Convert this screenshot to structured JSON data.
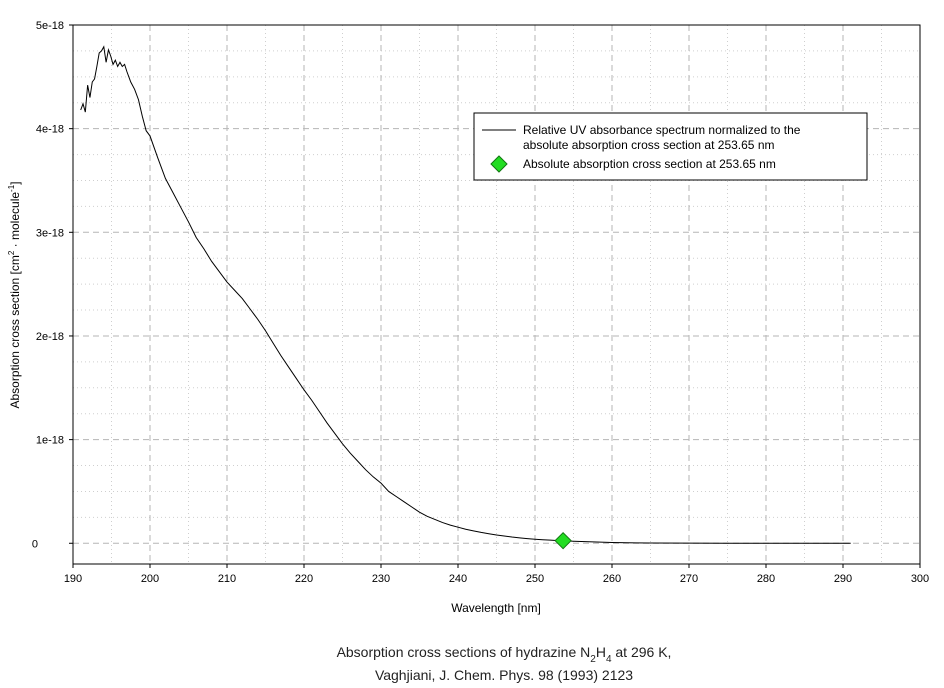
{
  "chart_data": {
    "type": "line",
    "xlabel": "Wavelength [nm]",
    "ylabel": {
      "parts": [
        "Absorption cross section [cm",
        "2",
        " · molecule",
        "-1",
        "]"
      ]
    },
    "xlim": [
      190,
      300
    ],
    "ylim": [
      -2e-19,
      5e-18
    ],
    "x_ticks": [
      190,
      200,
      210,
      220,
      230,
      240,
      250,
      260,
      270,
      280,
      290,
      300
    ],
    "x_tick_labels": [
      "190",
      "200",
      "210",
      "220",
      "230",
      "240",
      "250",
      "260",
      "270",
      "280",
      "290",
      "300"
    ],
    "y_ticks": [
      0,
      1e-18,
      2e-18,
      3e-18,
      4e-18,
      5e-18
    ],
    "y_tick_labels": [
      "0",
      "1e-18",
      "2e-18",
      "3e-18",
      "4e-18",
      "5e-18"
    ],
    "grid": true,
    "legend_position": "top-right",
    "series": [
      {
        "name": "Relative UV absorbance spectrum normalized to the absolute absorption cross section at 253.65 nm",
        "legend_lines": [
          "Relative UV absorbance spectrum normalized to the",
          "absolute absorption cross section at 253.65 nm"
        ],
        "type": "line",
        "color": "#000000",
        "x": [
          191,
          191.3,
          191.6,
          191.9,
          192.2,
          192.5,
          192.8,
          193.1,
          193.4,
          193.7,
          194.0,
          194.3,
          194.6,
          194.9,
          195.2,
          195.5,
          195.8,
          196.1,
          196.4,
          196.7,
          197.0,
          197.5,
          198.0,
          198.5,
          199,
          199.5,
          200,
          201,
          202,
          203,
          204,
          205,
          206,
          207,
          208,
          209,
          210,
          211,
          212,
          213,
          214,
          215,
          216,
          217,
          218,
          219,
          220,
          221,
          222,
          223,
          224,
          225,
          226,
          227,
          228,
          229,
          230,
          231,
          232,
          233,
          234,
          235,
          236,
          237,
          238,
          239,
          240,
          241,
          242,
          243,
          244,
          245,
          246,
          247,
          248,
          249,
          250,
          251,
          252,
          253,
          254,
          255,
          256,
          258,
          260,
          262,
          265,
          270,
          275,
          280,
          285,
          291
        ],
        "y": [
          4.18e-18,
          4.24e-18,
          4.16e-18,
          4.42e-18,
          4.3e-18,
          4.45e-18,
          4.48e-18,
          4.6e-18,
          4.73e-18,
          4.75e-18,
          4.79e-18,
          4.64e-18,
          4.76e-18,
          4.7e-18,
          4.62e-18,
          4.66e-18,
          4.6e-18,
          4.64e-18,
          4.6e-18,
          4.62e-18,
          4.55e-18,
          4.45e-18,
          4.38e-18,
          4.28e-18,
          4.12e-18,
          3.98e-18,
          3.93e-18,
          3.72e-18,
          3.52e-18,
          3.38e-18,
          3.24e-18,
          3.1e-18,
          2.95e-18,
          2.84e-18,
          2.72e-18,
          2.62e-18,
          2.52e-18,
          2.44e-18,
          2.36e-18,
          2.26e-18,
          2.16e-18,
          2.05e-18,
          1.93e-18,
          1.81e-18,
          1.7e-18,
          1.59e-18,
          1.48e-18,
          1.38e-18,
          1.27e-18,
          1.16e-18,
          1.06e-18,
          9.6e-19,
          8.7e-19,
          7.9e-19,
          7.1e-19,
          6.4e-19,
          5.8e-19,
          5e-19,
          4.5e-19,
          4e-19,
          3.5e-19,
          3e-19,
          2.6e-19,
          2.3e-19,
          2e-19,
          1.75e-19,
          1.55e-19,
          1.35e-19,
          1.2e-19,
          1.05e-19,
          9.2e-20,
          8e-20,
          7e-20,
          6e-20,
          5.2e-20,
          4.5e-20,
          3.9e-20,
          3.4e-20,
          3e-20,
          2.6e-20,
          2.3e-20,
          2e-20,
          1.7e-20,
          1.2e-20,
          8e-21,
          5e-21,
          2e-21,
          1e-21,
          5e-22,
          2e-22,
          1e-22,
          0
        ]
      },
      {
        "name": "Absolute absorption cross section at 253.65 nm",
        "legend_lines": [
          "Absolute absorption cross section at 253.65 nm"
        ],
        "type": "scatter",
        "marker": "diamond",
        "color": "#22dd22",
        "x": [
          253.65
        ],
        "y": [
          2.5e-20
        ]
      }
    ]
  },
  "caption": {
    "line1_parts": [
      "Absorption cross sections of hydrazine N",
      "2",
      "H",
      "4",
      " at 296 K,"
    ],
    "line2": "Vaghjiani, J. Chem. Phys. 98 (1993) 2123"
  }
}
